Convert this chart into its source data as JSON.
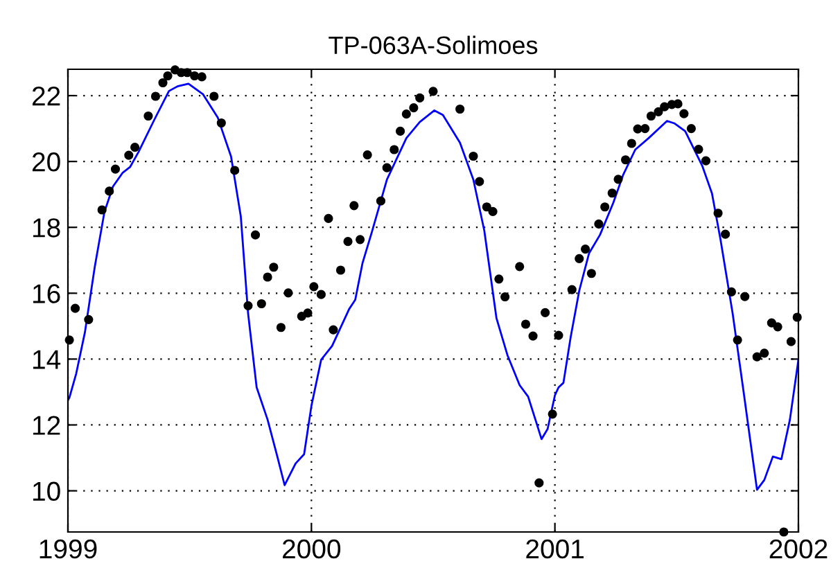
{
  "chart_data": {
    "type": "scatter",
    "title": "TP-063A-Solimoes",
    "xlim": [
      1999,
      2002
    ],
    "xticks": [
      1999,
      2000,
      2001,
      2002
    ],
    "ylim": [
      8.75,
      22.8
    ],
    "yticks": [
      10,
      12,
      14,
      16,
      18,
      20,
      22
    ],
    "grid": true,
    "legend": false,
    "series": [
      {
        "color": "#000000",
        "marker": "circle",
        "x": [
          1999.006,
          1999.03,
          1999.085,
          1999.14,
          1999.17,
          1999.195,
          1999.25,
          1999.275,
          1999.33,
          1999.36,
          1999.39,
          1999.41,
          1999.44,
          1999.465,
          1999.49,
          1999.52,
          1999.55,
          1999.6,
          1999.63,
          1999.685,
          1999.74,
          1999.77,
          1999.795,
          1999.82,
          1999.845,
          1999.875,
          1999.905,
          1999.96,
          1999.985,
          2000.01,
          2000.04,
          2000.07,
          2000.09,
          2000.12,
          2000.15,
          2000.175,
          2000.2,
          2000.23,
          2000.285,
          2000.31,
          2000.34,
          2000.365,
          2000.39,
          2000.42,
          2000.445,
          2000.5,
          2000.61,
          2000.665,
          2000.69,
          2000.72,
          2000.745,
          2000.77,
          2000.795,
          2000.855,
          2000.88,
          2000.91,
          2000.935,
          2000.96,
          2000.99,
          2001.015,
          2001.07,
          2001.1,
          2001.125,
          2001.15,
          2001.18,
          2001.205,
          2001.235,
          2001.26,
          2001.29,
          2001.315,
          2001.34,
          2001.37,
          2001.395,
          2001.425,
          2001.45,
          2001.48,
          2001.505,
          2001.53,
          2001.56,
          2001.59,
          2001.62,
          2001.67,
          2001.7,
          2001.725,
          2001.75,
          2001.78,
          2001.83,
          2001.86,
          2001.89,
          2001.915,
          2001.94,
          2001.97,
          2001.995
        ],
        "values": [
          14.58,
          15.54,
          15.2,
          18.53,
          19.1,
          19.77,
          20.19,
          20.43,
          21.38,
          21.98,
          22.39,
          22.6,
          22.78,
          22.7,
          22.7,
          22.6,
          22.57,
          21.98,
          21.17,
          19.73,
          15.62,
          17.77,
          15.68,
          16.49,
          16.79,
          14.96,
          16.01,
          15.3,
          15.4,
          16.2,
          15.96,
          18.27,
          14.89,
          16.7,
          17.57,
          18.66,
          17.63,
          20.2,
          18.8,
          19.81,
          20.36,
          20.92,
          21.44,
          21.63,
          21.93,
          22.13,
          21.59,
          20.16,
          19.39,
          18.62,
          18.48,
          16.43,
          15.89,
          16.81,
          15.06,
          14.7,
          10.24,
          15.41,
          12.33,
          14.72,
          16.11,
          17.05,
          17.34,
          16.6,
          18.1,
          18.62,
          19.04,
          19.46,
          20.05,
          20.55,
          20.99,
          21.0,
          21.38,
          21.51,
          21.66,
          21.73,
          21.75,
          21.45,
          21.0,
          20.37,
          20.02,
          18.43,
          17.79,
          16.04,
          14.58,
          15.9,
          14.07,
          14.18,
          15.1,
          14.98,
          8.75,
          14.53,
          15.27
        ]
      },
      {
        "type": "line",
        "color": "#0000ff",
        "marker": "none",
        "line_style": "solid",
        "x": [
          1999.0,
          1999.006,
          1999.034,
          1999.07,
          1999.11,
          1999.15,
          1999.185,
          1999.225,
          1999.255,
          1999.29,
          1999.355,
          1999.415,
          1999.45,
          1999.495,
          1999.555,
          1999.615,
          1999.67,
          1999.71,
          1999.74,
          1999.775,
          1999.82,
          1999.86,
          1999.89,
          1999.935,
          1999.97,
          2000.0,
          2000.04,
          2000.085,
          2000.155,
          2000.18,
          2000.21,
          2000.25,
          2000.31,
          2000.39,
          2000.445,
          2000.505,
          2000.54,
          2000.61,
          2000.665,
          2000.71,
          2000.76,
          2000.805,
          2000.855,
          2000.89,
          2000.92,
          2000.945,
          2000.97,
          2001.0,
          2001.015,
          2001.035,
          2001.065,
          2001.1,
          2001.14,
          2001.185,
          2001.24,
          2001.28,
          2001.33,
          2001.385,
          2001.46,
          2001.49,
          2001.535,
          2001.605,
          2001.645,
          2001.68,
          2001.73,
          2001.775,
          2001.83,
          2001.86,
          2001.895,
          2001.93,
          2001.965,
          2002.0
        ],
        "values": [
          12.75,
          12.83,
          13.56,
          14.82,
          16.79,
          18.47,
          19.24,
          19.66,
          19.83,
          20.29,
          21.27,
          22.14,
          22.28,
          22.36,
          22.04,
          21.34,
          20.15,
          18.33,
          15.38,
          13.14,
          12.16,
          11.04,
          10.17,
          10.83,
          11.11,
          12.58,
          13.98,
          14.4,
          15.52,
          15.8,
          16.92,
          17.9,
          19.45,
          20.71,
          21.2,
          21.55,
          21.41,
          20.57,
          19.45,
          17.9,
          15.24,
          14.12,
          13.21,
          12.86,
          12.16,
          11.57,
          11.88,
          12.9,
          13.14,
          13.28,
          14.68,
          16.08,
          17.21,
          17.77,
          18.75,
          19.59,
          20.36,
          20.71,
          21.23,
          21.16,
          20.92,
          19.87,
          19.03,
          17.63,
          15.38,
          13.0,
          10.03,
          10.33,
          11.04,
          10.96,
          12.16,
          13.98
        ]
      }
    ]
  }
}
